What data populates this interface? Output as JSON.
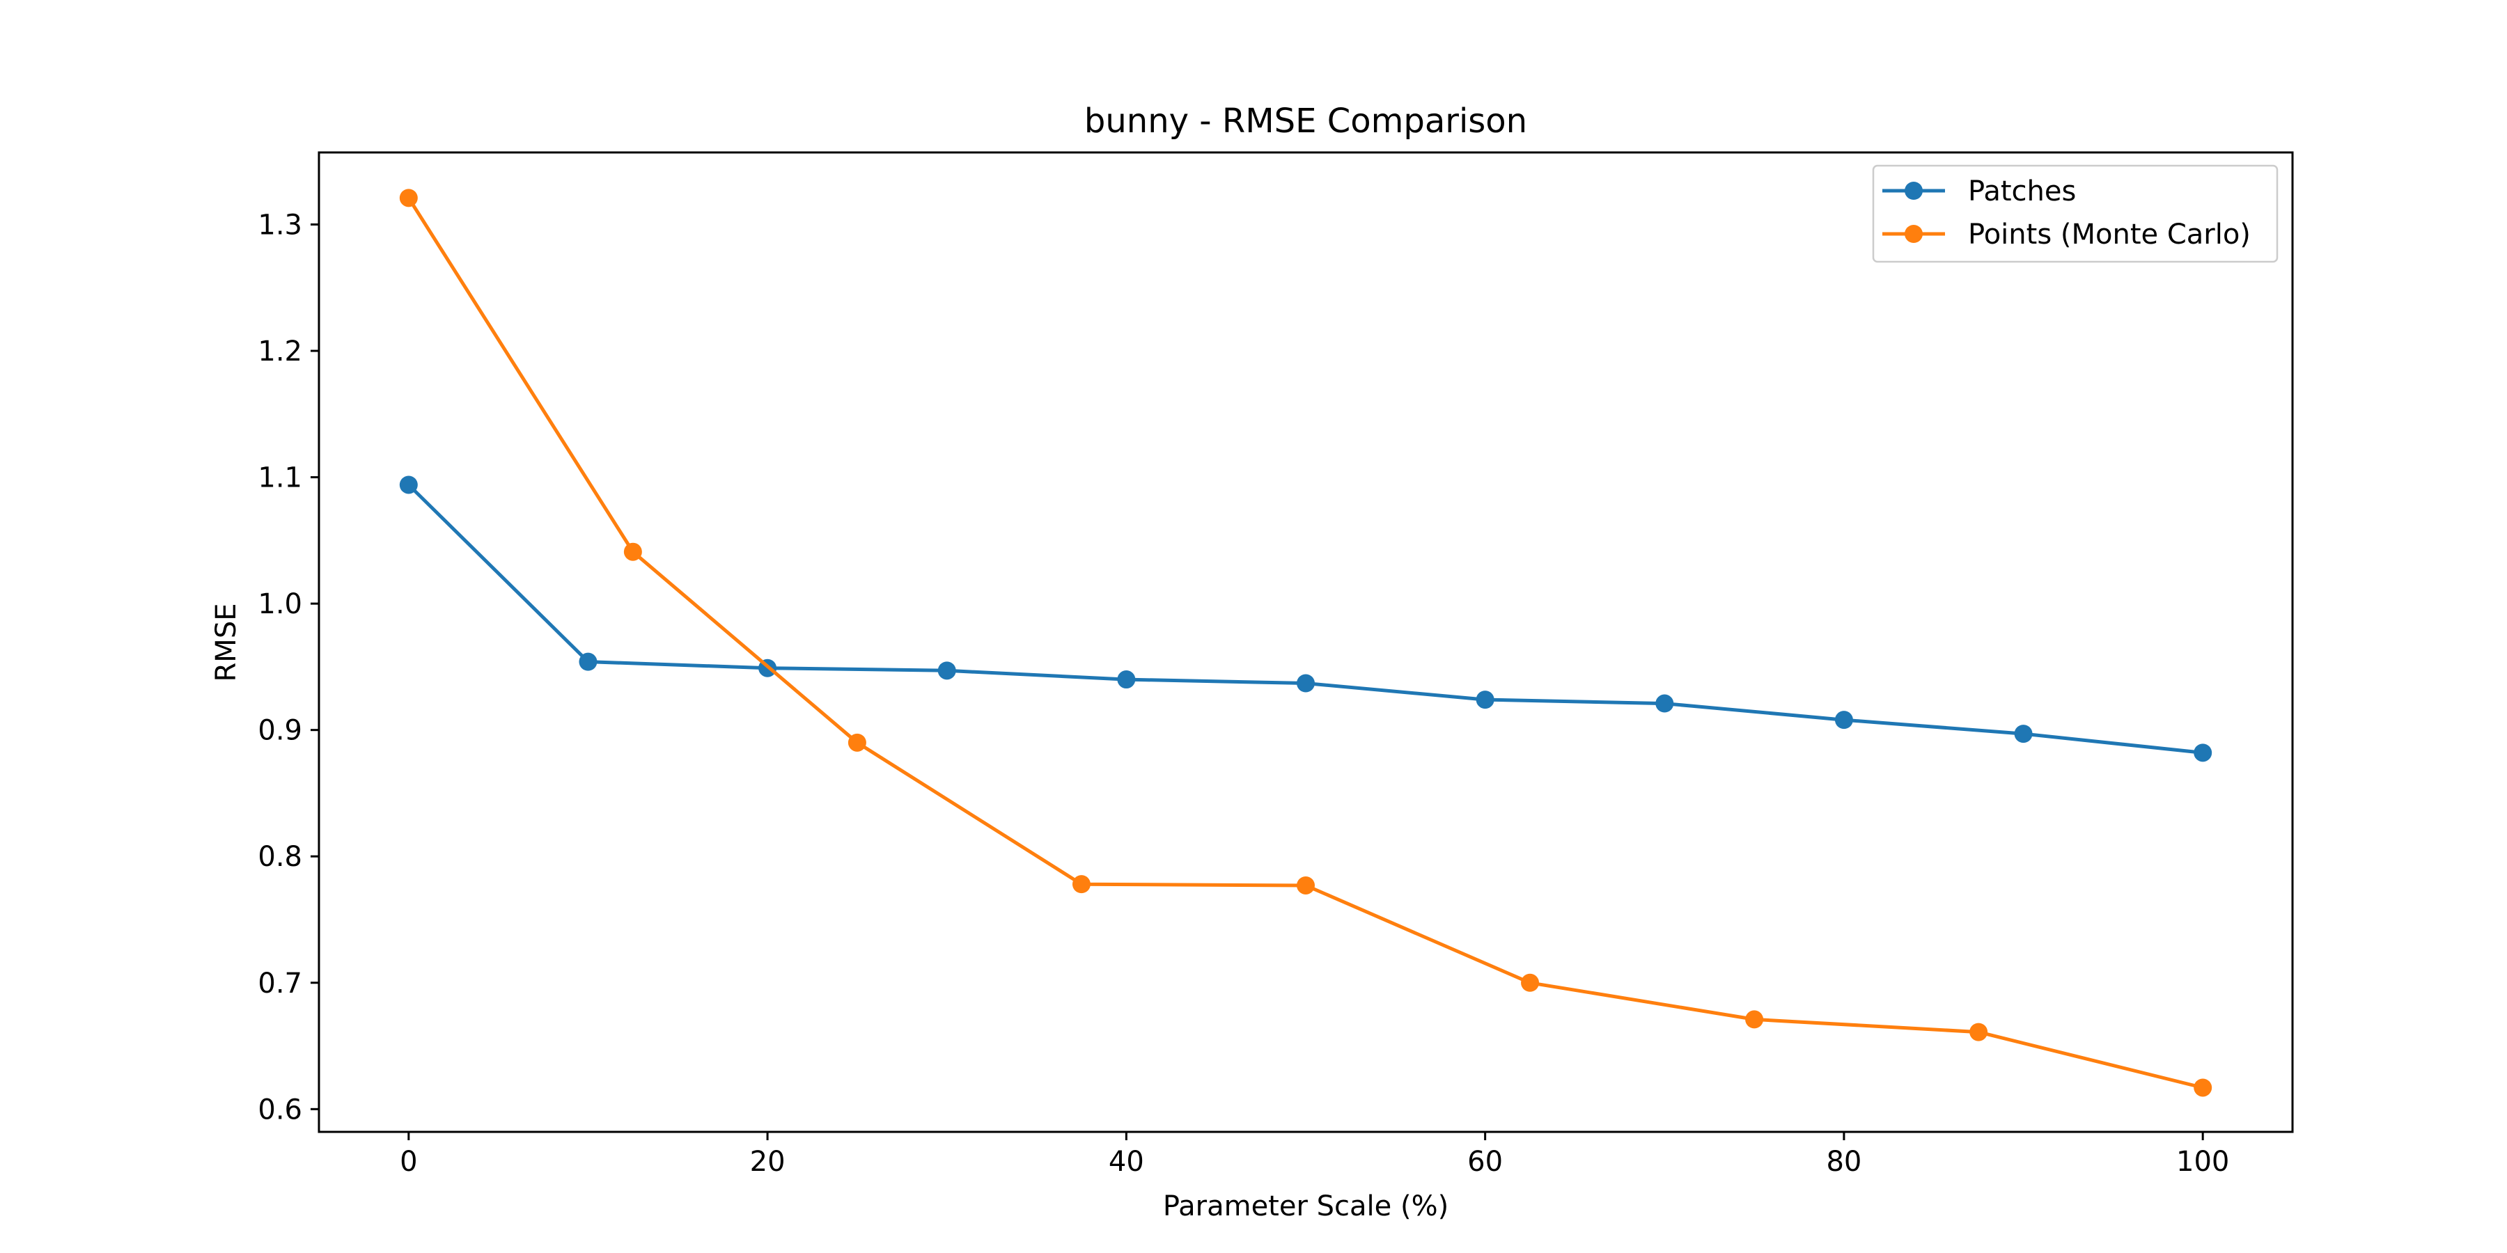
{
  "chart_data": {
    "type": "line",
    "title": "bunny - RMSE Comparison",
    "xlabel": "Parameter Scale (%)",
    "ylabel": "RMSE",
    "xlim": [
      -5,
      105
    ],
    "ylim": [
      0.582,
      1.357
    ],
    "x_ticks": [
      0,
      20,
      40,
      60,
      80,
      100
    ],
    "y_ticks": [
      0.6,
      0.7,
      0.8,
      0.9,
      1.0,
      1.1,
      1.2,
      1.3
    ],
    "x_tick_labels": [
      "0",
      "20",
      "40",
      "60",
      "80",
      "100"
    ],
    "y_tick_labels": [
      "0.6",
      "0.7",
      "0.8",
      "0.9",
      "1.0",
      "1.1",
      "1.2",
      "1.3"
    ],
    "grid": false,
    "legend_position": "top-right",
    "series": [
      {
        "name": "Patches",
        "color": "#1f77b4",
        "marker": "circle",
        "x": [
          0,
          10,
          20,
          30,
          40,
          50,
          60,
          70,
          80,
          90,
          100
        ],
        "y": [
          1.094,
          0.954,
          0.949,
          0.947,
          0.94,
          0.937,
          0.924,
          0.921,
          0.908,
          0.897,
          0.882
        ]
      },
      {
        "name": "Points (Monte Carlo)",
        "color": "#ff7f0e",
        "marker": "circle",
        "x": [
          0,
          12.5,
          25,
          37.5,
          50,
          62.5,
          75,
          87.5,
          100
        ],
        "y": [
          1.321,
          1.041,
          0.89,
          0.778,
          0.777,
          0.7,
          0.671,
          0.661,
          0.617
        ]
      }
    ]
  }
}
